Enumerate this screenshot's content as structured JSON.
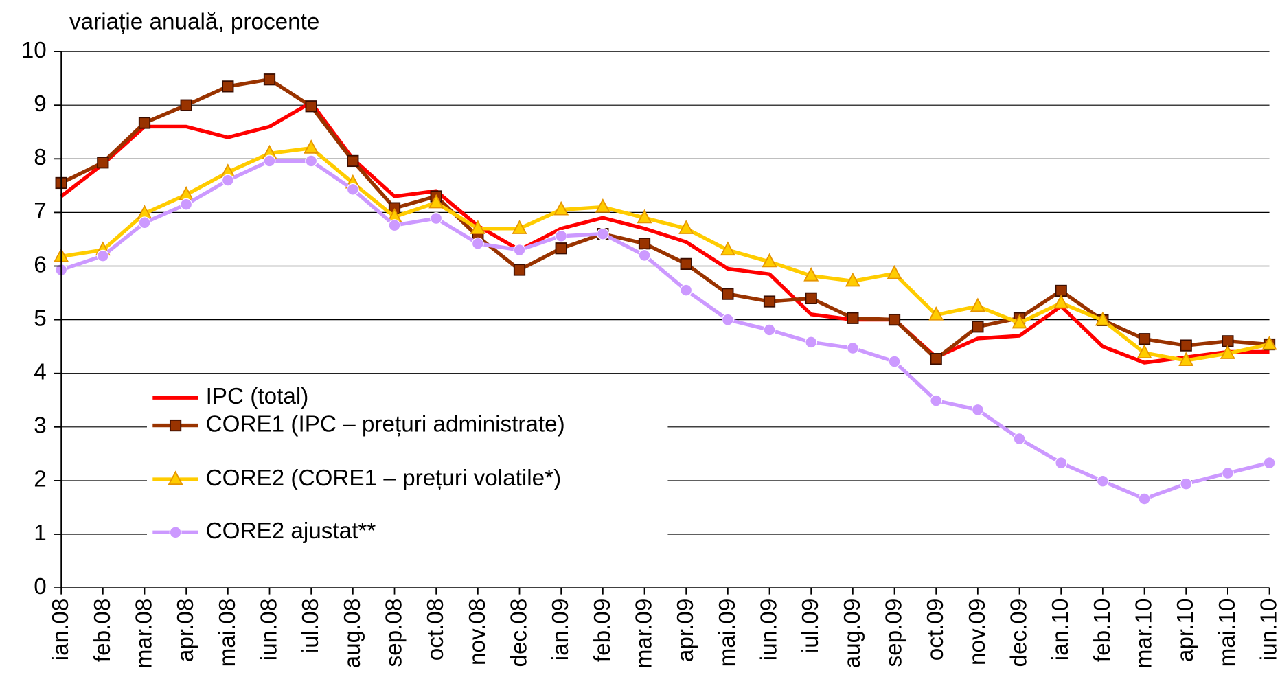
{
  "chart_data": {
    "type": "line",
    "title": "variație anuală, procente",
    "categories": [
      "ian.08",
      "feb.08",
      "mar.08",
      "apr.08",
      "mai.08",
      "iun.08",
      "iul.08",
      "aug.08",
      "sep.08",
      "oct.08",
      "nov.08",
      "dec.08",
      "ian.09",
      "feb.09",
      "mar.09",
      "apr.09",
      "mai.09",
      "iun.09",
      "iul.09",
      "aug.09",
      "sep.09",
      "oct.09",
      "nov.09",
      "dec.09",
      "ian.10",
      "feb.10",
      "mar.10",
      "apr.10",
      "mai.10",
      "iun.10"
    ],
    "series": [
      {
        "name": "IPC (total)",
        "color": "#ff0000",
        "marker": "none",
        "values": [
          7.3,
          7.9,
          8.6,
          8.6,
          8.4,
          8.6,
          9.05,
          8.0,
          7.3,
          7.4,
          6.75,
          6.3,
          6.7,
          6.9,
          6.7,
          6.45,
          5.95,
          5.85,
          5.1,
          5.0,
          5.0,
          4.3,
          4.65,
          4.7,
          5.25,
          4.5,
          4.2,
          4.3,
          4.4,
          4.4
        ]
      },
      {
        "name": "CORE1 (IPC – prețuri administrate)",
        "color": "#993300",
        "marker": "square",
        "values": [
          7.55,
          7.93,
          8.67,
          9.0,
          9.35,
          9.48,
          8.98,
          7.96,
          7.08,
          7.3,
          6.55,
          5.93,
          6.33,
          6.6,
          6.42,
          6.04,
          5.48,
          5.34,
          5.4,
          5.03,
          5.0,
          4.27,
          4.87,
          5.03,
          5.54,
          4.99,
          4.64,
          4.52,
          4.6,
          4.54
        ]
      },
      {
        "name": "CORE2 (CORE1 – prețuri volatile*)",
        "color": "#ffcc00",
        "marker": "triangle",
        "values": [
          6.18,
          6.3,
          6.98,
          7.33,
          7.75,
          8.1,
          8.2,
          7.55,
          6.92,
          7.18,
          6.7,
          6.7,
          7.05,
          7.1,
          6.9,
          6.7,
          6.3,
          6.08,
          5.82,
          5.72,
          5.86,
          5.09,
          5.25,
          4.94,
          5.31,
          4.99,
          4.38,
          4.24,
          4.37,
          4.54
        ]
      },
      {
        "name": "CORE2 ajustat**",
        "color": "#cc99ff",
        "marker": "circle",
        "values": [
          5.93,
          6.19,
          6.81,
          7.15,
          7.6,
          7.96,
          7.96,
          7.43,
          6.76,
          6.89,
          6.42,
          6.3,
          6.56,
          6.6,
          6.2,
          5.55,
          5.0,
          4.81,
          4.58,
          4.47,
          4.22,
          3.49,
          3.32,
          2.78,
          2.33,
          1.99,
          1.66,
          1.94,
          2.14,
          2.33
        ]
      }
    ],
    "ylim": [
      0,
      10
    ],
    "yticks": [
      0,
      1,
      2,
      3,
      4,
      5,
      6,
      7,
      8,
      9,
      10
    ],
    "grid": true,
    "legend": "lower left"
  }
}
